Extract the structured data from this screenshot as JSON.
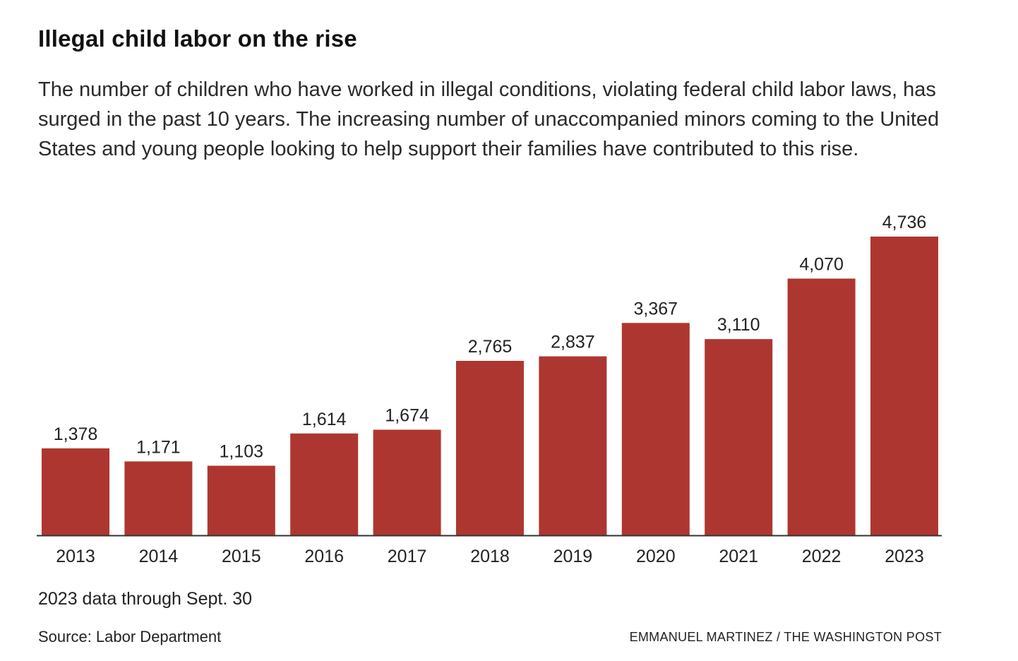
{
  "header": {
    "title": "Illegal child labor on the rise",
    "subtitle": "The number of children who have worked in illegal conditions, violating federal child labor laws, has surged in the past 10 years. The increasing number of unaccompanied minors coming to the United States and young people looking to help support their families have contributed to this rise."
  },
  "chart_data": {
    "type": "bar",
    "title": "Illegal child labor on the rise",
    "categories": [
      "2013",
      "2014",
      "2015",
      "2016",
      "2017",
      "2018",
      "2019",
      "2020",
      "2021",
      "2022",
      "2023"
    ],
    "values": [
      1378,
      1171,
      1103,
      1614,
      1674,
      2765,
      2837,
      3367,
      3110,
      4070,
      4736
    ],
    "value_labels": [
      "1,378",
      "1,171",
      "1,103",
      "1,614",
      "1,674",
      "2,765",
      "2,837",
      "3,367",
      "3,110",
      "4,070",
      "4,736"
    ],
    "xlabel": "",
    "ylabel": "",
    "ylim": [
      0,
      4736
    ],
    "grid": false,
    "legend": "none",
    "bar_color": "#ad3730",
    "axis_color": "#333333"
  },
  "footer": {
    "note": "2023 data through Sept. 30",
    "source": "Source: Labor Department",
    "credit": "EMMANUEL MARTINEZ / THE WASHINGTON POST"
  }
}
